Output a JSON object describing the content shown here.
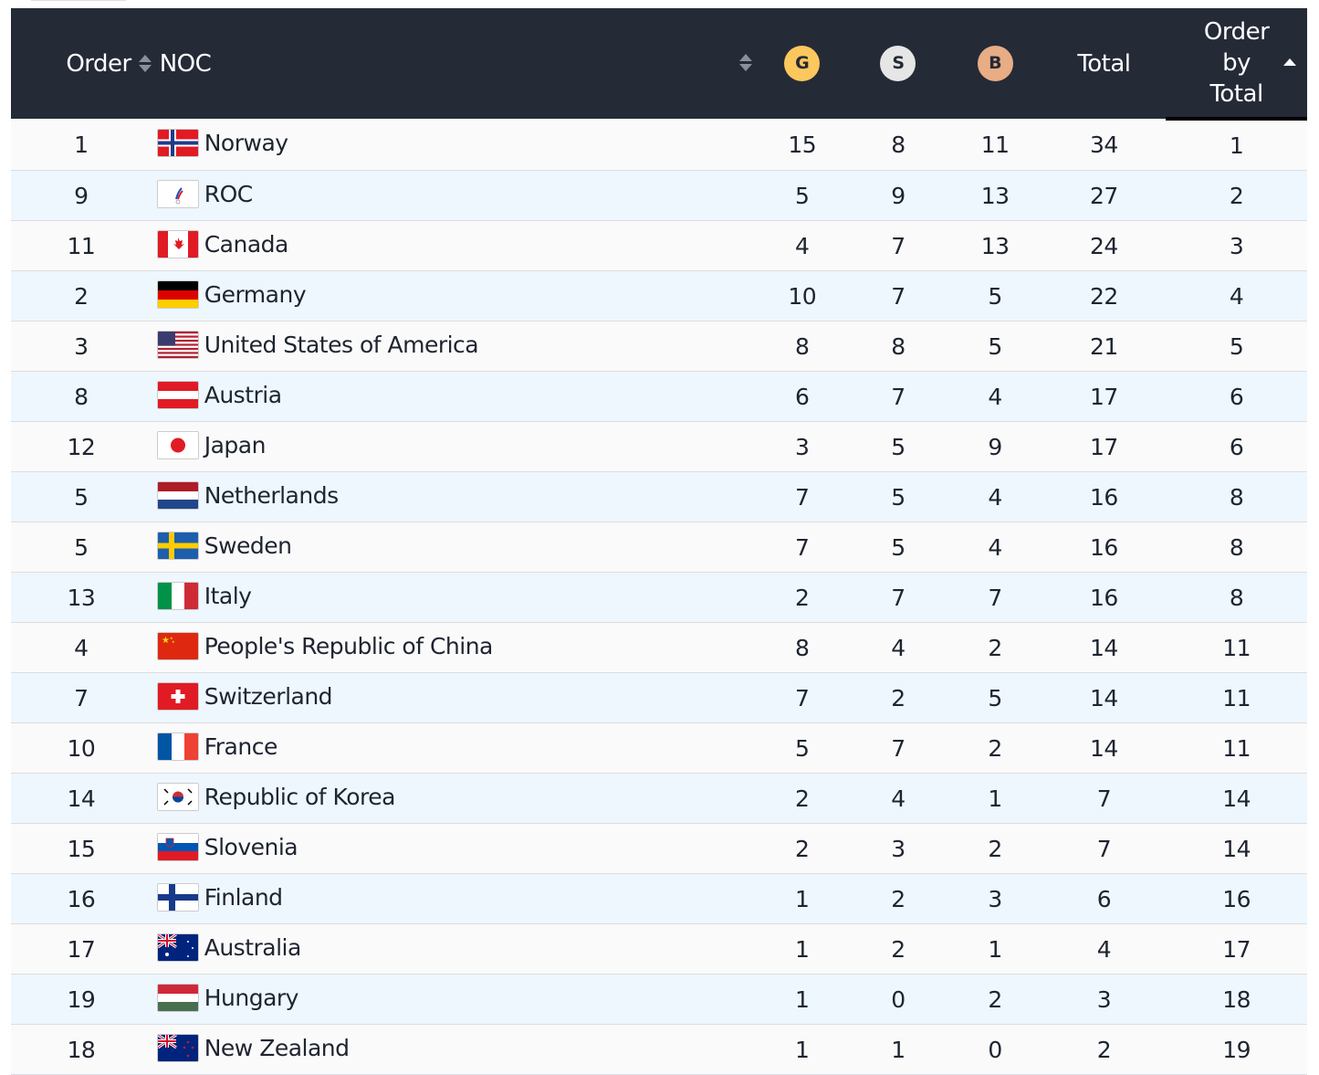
{
  "header": {
    "order": "Order",
    "noc": "NOC",
    "gold": "G",
    "silver": "S",
    "bronze": "B",
    "total": "Total",
    "order_by_total": [
      "Order",
      "by",
      "Total"
    ]
  },
  "colors": {
    "header_bg": "#252a37",
    "gold": "#fcc75d",
    "silver": "#e6e6e6",
    "bronze": "#e8ad84"
  },
  "rows": [
    {
      "order": "1",
      "flag": "no",
      "noc": "Norway",
      "g": "15",
      "s": "8",
      "b": "11",
      "total": "34",
      "rank": "1"
    },
    {
      "order": "9",
      "flag": "roc",
      "noc": "ROC",
      "g": "5",
      "s": "9",
      "b": "13",
      "total": "27",
      "rank": "2"
    },
    {
      "order": "11",
      "flag": "ca",
      "noc": "Canada",
      "g": "4",
      "s": "7",
      "b": "13",
      "total": "24",
      "rank": "3"
    },
    {
      "order": "2",
      "flag": "de",
      "noc": "Germany",
      "g": "10",
      "s": "7",
      "b": "5",
      "total": "22",
      "rank": "4"
    },
    {
      "order": "3",
      "flag": "us",
      "noc": "United States of America",
      "g": "8",
      "s": "8",
      "b": "5",
      "total": "21",
      "rank": "5"
    },
    {
      "order": "8",
      "flag": "at",
      "noc": "Austria",
      "g": "6",
      "s": "7",
      "b": "4",
      "total": "17",
      "rank": "6"
    },
    {
      "order": "12",
      "flag": "jp",
      "noc": "Japan",
      "g": "3",
      "s": "5",
      "b": "9",
      "total": "17",
      "rank": "6"
    },
    {
      "order": "5",
      "flag": "nl",
      "noc": "Netherlands",
      "g": "7",
      "s": "5",
      "b": "4",
      "total": "16",
      "rank": "8"
    },
    {
      "order": "5",
      "flag": "se",
      "noc": "Sweden",
      "g": "7",
      "s": "5",
      "b": "4",
      "total": "16",
      "rank": "8"
    },
    {
      "order": "13",
      "flag": "it",
      "noc": "Italy",
      "g": "2",
      "s": "7",
      "b": "7",
      "total": "16",
      "rank": "8"
    },
    {
      "order": "4",
      "flag": "cn",
      "noc": "People's Republic of China",
      "g": "8",
      "s": "4",
      "b": "2",
      "total": "14",
      "rank": "11"
    },
    {
      "order": "7",
      "flag": "ch",
      "noc": "Switzerland",
      "g": "7",
      "s": "2",
      "b": "5",
      "total": "14",
      "rank": "11"
    },
    {
      "order": "10",
      "flag": "fr",
      "noc": "France",
      "g": "5",
      "s": "7",
      "b": "2",
      "total": "14",
      "rank": "11"
    },
    {
      "order": "14",
      "flag": "kr",
      "noc": "Republic of Korea",
      "g": "2",
      "s": "4",
      "b": "1",
      "total": "7",
      "rank": "14"
    },
    {
      "order": "15",
      "flag": "si",
      "noc": "Slovenia",
      "g": "2",
      "s": "3",
      "b": "2",
      "total": "7",
      "rank": "14"
    },
    {
      "order": "16",
      "flag": "fi",
      "noc": "Finland",
      "g": "1",
      "s": "2",
      "b": "3",
      "total": "6",
      "rank": "16"
    },
    {
      "order": "17",
      "flag": "au",
      "noc": "Australia",
      "g": "1",
      "s": "2",
      "b": "1",
      "total": "4",
      "rank": "17"
    },
    {
      "order": "19",
      "flag": "hu",
      "noc": "Hungary",
      "g": "1",
      "s": "0",
      "b": "2",
      "total": "3",
      "rank": "18"
    },
    {
      "order": "18",
      "flag": "nz",
      "noc": "New Zealand",
      "g": "1",
      "s": "1",
      "b": "0",
      "total": "2",
      "rank": "19"
    }
  ]
}
